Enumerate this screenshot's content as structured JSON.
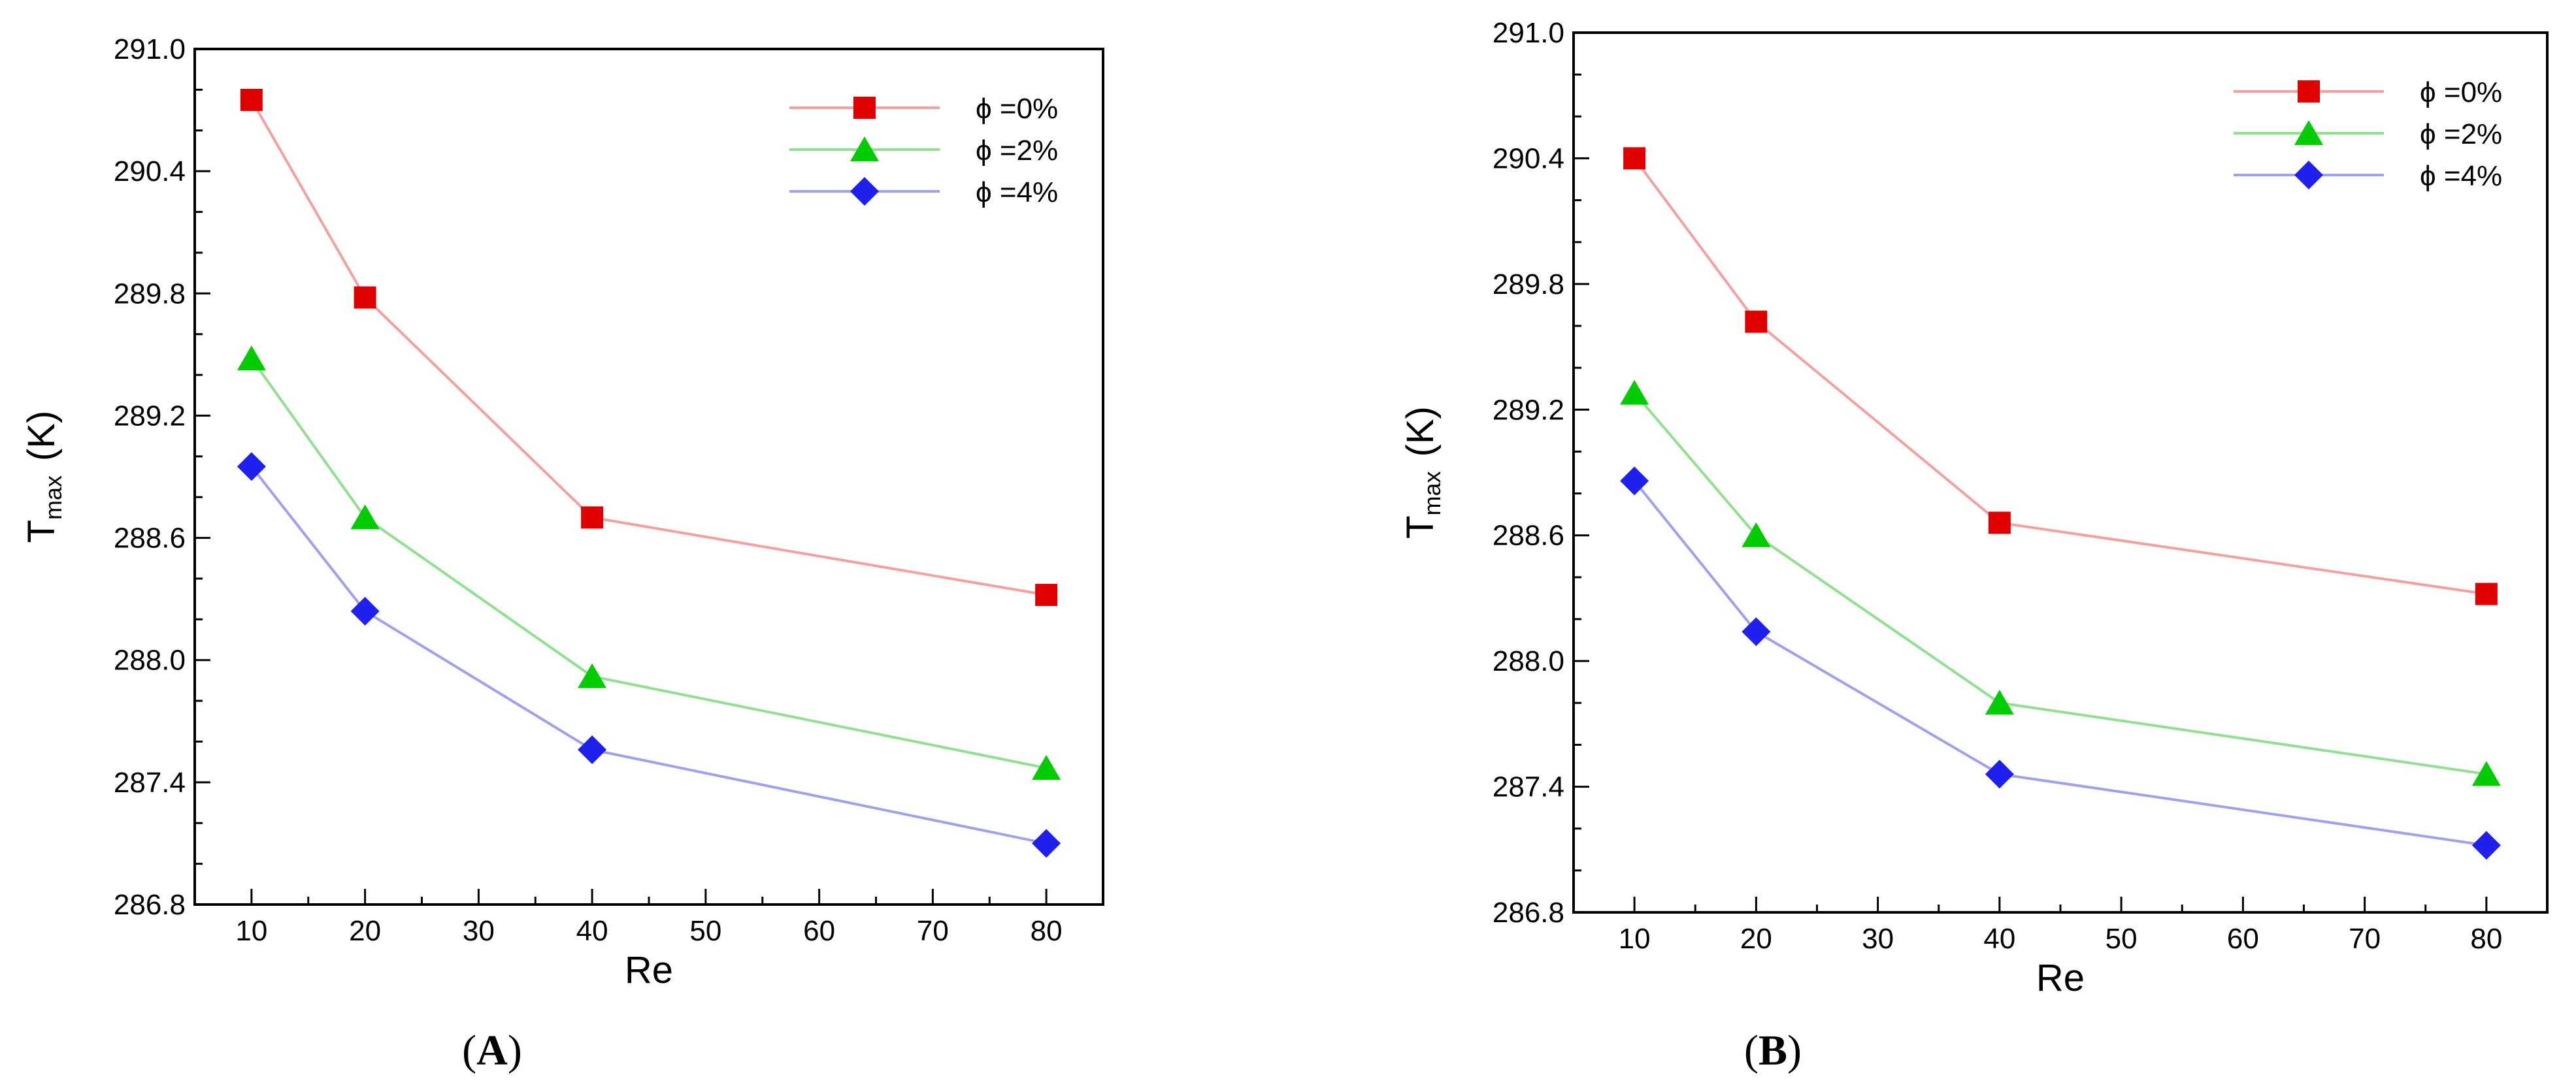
{
  "chart_data": [
    {
      "type": "line",
      "caption": "A",
      "x": [
        10,
        20,
        40,
        80
      ],
      "series": [
        {
          "name": "ϕ =0%",
          "values": [
            290.75,
            289.78,
            288.7,
            288.32
          ],
          "color": "#e00000",
          "line_color": "#f4a0a0",
          "marker": "square"
        },
        {
          "name": "ϕ =2%",
          "values": [
            289.48,
            288.7,
            287.92,
            287.47
          ],
          "color": "#00cc00",
          "line_color": "#90e090",
          "marker": "triangle"
        },
        {
          "name": "ϕ =4%",
          "values": [
            288.95,
            288.24,
            287.56,
            287.1
          ],
          "color": "#2020ee",
          "line_color": "#a0a0ee",
          "marker": "diamond"
        }
      ],
      "xlabel": "Re",
      "ylabel_main": "T",
      "ylabel_sub": "max",
      "ylabel_unit": "(K)",
      "xlim": [
        5,
        85
      ],
      "ylim": [
        286.8,
        291.0
      ],
      "xticks": [
        "10",
        "20",
        "30",
        "40",
        "50",
        "60",
        "70",
        "80"
      ],
      "yticks": [
        "286.8",
        "287.4",
        "288.0",
        "288.6",
        "289.2",
        "289.8",
        "290.4",
        "291.0"
      ],
      "legend_position": "top-right",
      "grid": false
    },
    {
      "type": "line",
      "caption": "B",
      "x": [
        10,
        20,
        40,
        80
      ],
      "series": [
        {
          "name": "ϕ =0%",
          "values": [
            290.4,
            289.62,
            288.66,
            288.32
          ],
          "color": "#e00000",
          "line_color": "#f4a0a0",
          "marker": "square"
        },
        {
          "name": "ϕ =2%",
          "values": [
            289.28,
            288.6,
            287.8,
            287.46
          ],
          "color": "#00cc00",
          "line_color": "#90e090",
          "marker": "triangle"
        },
        {
          "name": "ϕ =4%",
          "values": [
            288.86,
            288.14,
            287.46,
            287.12
          ],
          "color": "#2020ee",
          "line_color": "#a0a0ee",
          "marker": "diamond"
        }
      ],
      "xlabel": "Re",
      "ylabel_main": "T",
      "ylabel_sub": "max",
      "ylabel_unit": "(K)",
      "xlim": [
        5,
        85
      ],
      "ylim": [
        286.8,
        291.0
      ],
      "xticks": [
        "10",
        "20",
        "30",
        "40",
        "50",
        "60",
        "70",
        "80"
      ],
      "yticks": [
        "286.8",
        "287.4",
        "288.0",
        "288.6",
        "289.2",
        "289.8",
        "290.4",
        "291.0"
      ],
      "legend_position": "top-right",
      "grid": false
    }
  ]
}
